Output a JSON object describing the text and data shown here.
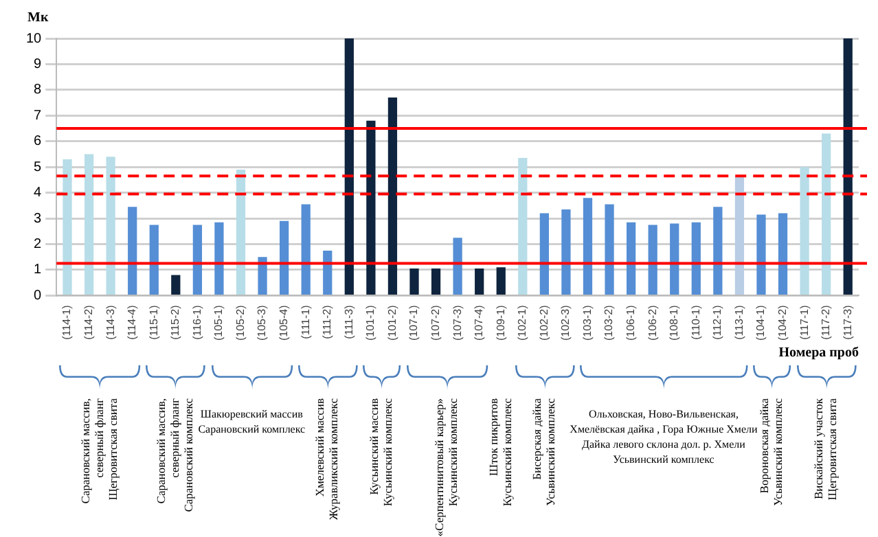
{
  "chart_data": {
    "type": "bar",
    "ylabel": "Мк",
    "xlabel": "Номера проб",
    "categories": [
      "(114-1)",
      "(114-2)",
      "(114-3)",
      "(114-4)",
      "(115-1)",
      "(115-2)",
      "(116-1)",
      "(105-1)",
      "(105-2)",
      "(105-3)",
      "(105-4)",
      "(111-1)",
      "(111-2)",
      "(111-3)",
      "(101-1)",
      "(101-2)",
      "(107-1)",
      "(107-2)",
      "(107-3)",
      "(107-4)",
      "(109-1)",
      "(102-1)",
      "(102-2)",
      "(102-3)",
      "(103-1)",
      "(103-2)",
      "(106-1)",
      "(106-2)",
      "(108-1)",
      "(110-1)",
      "(112-1)",
      "(113-1)",
      "(104-1)",
      "(104-2)",
      "(117-1)",
      "(117-2)",
      "(117-3)"
    ],
    "values": [
      5.3,
      5.5,
      5.4,
      3.45,
      2.75,
      0.8,
      2.75,
      2.85,
      4.9,
      1.5,
      2.9,
      3.55,
      1.75,
      10,
      6.8,
      7.7,
      1.05,
      1.05,
      2.25,
      1.05,
      1.1,
      5.35,
      3.2,
      3.35,
      3.8,
      3.55,
      2.85,
      2.75,
      2.8,
      2.85,
      3.45,
      4.65,
      3.15,
      3.2,
      5.0,
      6.3,
      10
    ],
    "colors": [
      "#b7dde8",
      "#b7dde8",
      "#b7dde8",
      "#558ed5",
      "#558ed5",
      "#0f243e",
      "#558ed5",
      "#558ed5",
      "#b7dde8",
      "#558ed5",
      "#558ed5",
      "#558ed5",
      "#558ed5",
      "#0f243e",
      "#0f243e",
      "#0f243e",
      "#0f243e",
      "#0f243e",
      "#558ed5",
      "#0f243e",
      "#0f243e",
      "#b7dde8",
      "#558ed5",
      "#558ed5",
      "#558ed5",
      "#558ed5",
      "#558ed5",
      "#558ed5",
      "#558ed5",
      "#558ed5",
      "#558ed5",
      "#b9cde5",
      "#558ed5",
      "#558ed5",
      "#b7dde8",
      "#b7dde8",
      "#0f243e"
    ],
    "ylim": [
      0,
      10
    ],
    "yticks": [
      0,
      1,
      2,
      3,
      4,
      5,
      6,
      7,
      8,
      9,
      10
    ],
    "grid": "y",
    "legend": false,
    "ref_lines": [
      {
        "axis": "y",
        "value": 6.5,
        "color": "#ff0000",
        "line_style": "solid"
      },
      {
        "axis": "y",
        "value": 4.65,
        "color": "#ff0000",
        "line_style": "dashed"
      },
      {
        "axis": "y",
        "value": 3.95,
        "color": "#ff0000",
        "line_style": "dashed"
      },
      {
        "axis": "y",
        "value": 1.25,
        "color": "#ff0000",
        "line_style": "solid"
      }
    ],
    "annotations": [
      "Сарановский массив,\nсеверный фланг\nЩегровитская свита",
      "Сарановский массив,\nсеверный фланг\nСарановский комплекс",
      "Шакюревский массив\nСарановский комплекс",
      "Хмелевский массив\nЖуравликский комплекс",
      "Кусьинский массив\nКусьинский комплекс",
      "«Серпентинитовый карьер»\nКусьинский комплекс",
      "Шток пикритов\nКусьинский комплекс",
      "Бисерская дайка\nУсьвинский комплекс",
      "Ольховская, Ново-Вильвенская,\nХмелёвская дайка , Гора Южные Хмели\nДайка левого склона дол. р. Хмели\nУсьвинский комплекс",
      "Вороновская дайка\nУсьвинский комплекс",
      "Вискайский участок\nЩегровитская свита"
    ]
  }
}
